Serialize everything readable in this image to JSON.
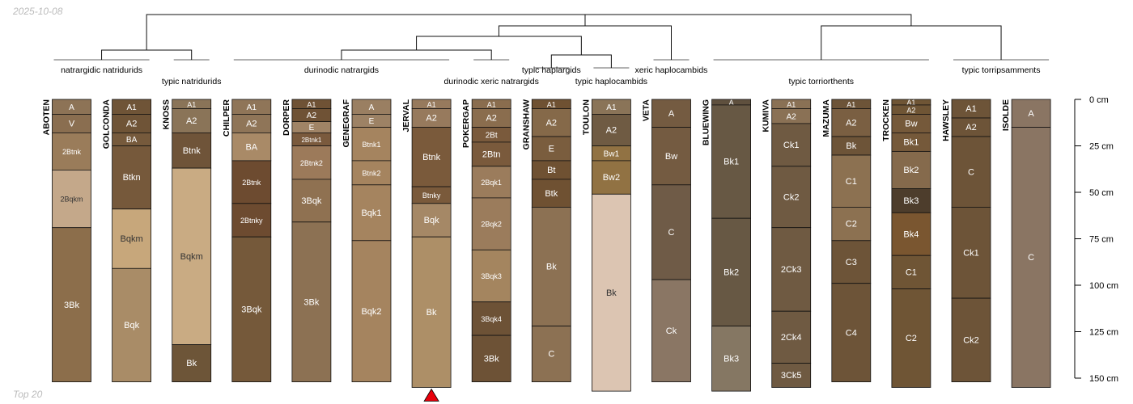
{
  "header": {
    "date": "2025-10-08"
  },
  "footer": {
    "label": "Top 20"
  },
  "depth_axis": {
    "unit": "cm",
    "ticks": [
      0,
      25,
      50,
      75,
      100,
      125,
      150
    ]
  },
  "groups": [
    {
      "label": "natrargidic natridurids",
      "members": [
        "ABOTEN",
        "GOLCONDA"
      ]
    },
    {
      "label": "typic natridurids",
      "members": [
        "KNOSS"
      ]
    },
    {
      "label": "durinodic natrargids",
      "members": [
        "CHILPER",
        "DORPER",
        "GENEGRAF",
        "JERVAL"
      ]
    },
    {
      "label": "durinodic xeric natrargids",
      "members": [
        "POKERGAP"
      ]
    },
    {
      "label": "typic haplargids",
      "members": [
        "GRANSHAW"
      ]
    },
    {
      "label": "typic haplocambids",
      "members": [
        "TOULON"
      ]
    },
    {
      "label": "xeric haplocambids",
      "members": [
        "VETA"
      ]
    },
    {
      "label": "typic torriorthents",
      "members": [
        "BLUEWING",
        "KUMIVA",
        "MAZUMA",
        "TROCKEN"
      ]
    },
    {
      "label": "typic torripsamments",
      "members": [
        "HAWSLEY",
        "ISOLDE"
      ]
    }
  ],
  "marker": {
    "profile": "JERVAL",
    "color": "#e8000b"
  },
  "profiles": [
    {
      "name": "ABOTEN",
      "horizons": [
        {
          "name": "A",
          "top": 0,
          "bottom": 8,
          "color": "#8d7356"
        },
        {
          "name": "V",
          "top": 8,
          "bottom": 18,
          "color": "#8a6e50"
        },
        {
          "name": "2Btnk",
          "top": 18,
          "bottom": 38,
          "color": "#9a7c5a"
        },
        {
          "name": "2Bqkm",
          "top": 38,
          "bottom": 69,
          "color": "#c4a88a"
        },
        {
          "name": "3Bk",
          "top": 69,
          "bottom": 152,
          "color": "#8c6e4b"
        }
      ]
    },
    {
      "name": "GOLCONDA",
      "horizons": [
        {
          "name": "A1",
          "top": 0,
          "bottom": 8,
          "color": "#6f5437"
        },
        {
          "name": "A2",
          "top": 8,
          "bottom": 18,
          "color": "#6f5437"
        },
        {
          "name": "BA",
          "top": 18,
          "bottom": 25,
          "color": "#765a3c"
        },
        {
          "name": "Btkn",
          "top": 25,
          "bottom": 59,
          "color": "#76593b"
        },
        {
          "name": "Bqkm",
          "top": 59,
          "bottom": 91,
          "color": "#c7a77b"
        },
        {
          "name": "Bqk",
          "top": 91,
          "bottom": 152,
          "color": "#a98c67"
        }
      ]
    },
    {
      "name": "KNOSS",
      "horizons": [
        {
          "name": "A1",
          "top": 0,
          "bottom": 5,
          "color": "#8a7458"
        },
        {
          "name": "A2",
          "top": 5,
          "bottom": 18,
          "color": "#8a7458"
        },
        {
          "name": "Btnk",
          "top": 18,
          "bottom": 37,
          "color": "#6f5439"
        },
        {
          "name": "Bqkm",
          "top": 37,
          "bottom": 132,
          "color": "#c9ab83"
        },
        {
          "name": "Bk",
          "top": 132,
          "bottom": 152,
          "color": "#6d5538"
        }
      ]
    },
    {
      "name": "CHILPER",
      "horizons": [
        {
          "name": "A1",
          "top": 0,
          "bottom": 8,
          "color": "#8f7558"
        },
        {
          "name": "A2",
          "top": 8,
          "bottom": 18,
          "color": "#8f7558"
        },
        {
          "name": "BA",
          "top": 18,
          "bottom": 33,
          "color": "#a98a67"
        },
        {
          "name": "2Btnk",
          "top": 33,
          "bottom": 56,
          "color": "#6d4b30"
        },
        {
          "name": "2Btnky",
          "top": 56,
          "bottom": 74,
          "color": "#6d4b30"
        },
        {
          "name": "3Bqk",
          "top": 74,
          "bottom": 152,
          "color": "#75593a"
        }
      ]
    },
    {
      "name": "DORPER",
      "horizons": [
        {
          "name": "A1",
          "top": 0,
          "bottom": 5,
          "color": "#6f5235"
        },
        {
          "name": "A2",
          "top": 5,
          "bottom": 12,
          "color": "#6f5235"
        },
        {
          "name": "E",
          "top": 12,
          "bottom": 18,
          "color": "#a08466"
        },
        {
          "name": "2Btnk1",
          "top": 18,
          "bottom": 25,
          "color": "#7a5a3d"
        },
        {
          "name": "2Btnk2",
          "top": 25,
          "bottom": 43,
          "color": "#9c7a5a"
        },
        {
          "name": "3Bqk",
          "top": 43,
          "bottom": 66,
          "color": "#8f7151"
        },
        {
          "name": "3Bk",
          "top": 66,
          "bottom": 152,
          "color": "#8c7153"
        }
      ]
    },
    {
      "name": "GENEGRAF",
      "horizons": [
        {
          "name": "A",
          "top": 0,
          "bottom": 8,
          "color": "#9a7f62"
        },
        {
          "name": "E",
          "top": 8,
          "bottom": 15,
          "color": "#9d8265"
        },
        {
          "name": "Btnk1",
          "top": 15,
          "bottom": 33,
          "color": "#a5845f"
        },
        {
          "name": "Btnk2",
          "top": 33,
          "bottom": 46,
          "color": "#a5845f"
        },
        {
          "name": "Bqk1",
          "top": 46,
          "bottom": 76,
          "color": "#a5845f"
        },
        {
          "name": "Bqk2",
          "top": 76,
          "bottom": 152,
          "color": "#a5845f"
        }
      ]
    },
    {
      "name": "JERVAL",
      "horizons": [
        {
          "name": "A1",
          "top": 0,
          "bottom": 5,
          "color": "#977a5d"
        },
        {
          "name": "A2",
          "top": 5,
          "bottom": 15,
          "color": "#977a5d"
        },
        {
          "name": "Btnk",
          "top": 15,
          "bottom": 47,
          "color": "#7a5a3b"
        },
        {
          "name": "Btnky",
          "top": 47,
          "bottom": 56,
          "color": "#7a5a3b"
        },
        {
          "name": "Bqk",
          "top": 56,
          "bottom": 74,
          "color": "#a58866"
        },
        {
          "name": "Bk",
          "top": 74,
          "bottom": 155,
          "color": "#ad8f67"
        }
      ]
    },
    {
      "name": "POKERGAP",
      "horizons": [
        {
          "name": "A1",
          "top": 0,
          "bottom": 5,
          "color": "#8a6d4e"
        },
        {
          "name": "A2",
          "top": 5,
          "bottom": 15,
          "color": "#8a6d4e"
        },
        {
          "name": "2Bt",
          "top": 15,
          "bottom": 23,
          "color": "#7a5a3c"
        },
        {
          "name": "2Btn",
          "top": 23,
          "bottom": 36,
          "color": "#7a5a3c"
        },
        {
          "name": "2Bqk1",
          "top": 36,
          "bottom": 53,
          "color": "#9b7c5c"
        },
        {
          "name": "2Bqk2",
          "top": 53,
          "bottom": 81,
          "color": "#9b7c5c"
        },
        {
          "name": "3Bqk3",
          "top": 81,
          "bottom": 109,
          "color": "#a4855f"
        },
        {
          "name": "3Bqk4",
          "top": 109,
          "bottom": 127,
          "color": "#6d5236"
        },
        {
          "name": "3Bk",
          "top": 127,
          "bottom": 152,
          "color": "#6d5236"
        }
      ]
    },
    {
      "name": "GRANSHAW",
      "horizons": [
        {
          "name": "A1",
          "top": 0,
          "bottom": 5,
          "color": "#6f5132"
        },
        {
          "name": "A2",
          "top": 5,
          "bottom": 20,
          "color": "#856949"
        },
        {
          "name": "E",
          "top": 20,
          "bottom": 33,
          "color": "#7a5d3e"
        },
        {
          "name": "Bt",
          "top": 33,
          "bottom": 43,
          "color": "#6f5132"
        },
        {
          "name": "Btk",
          "top": 43,
          "bottom": 58,
          "color": "#6f5132"
        },
        {
          "name": "Bk",
          "top": 58,
          "bottom": 122,
          "color": "#8c7153"
        },
        {
          "name": "C",
          "top": 122,
          "bottom": 152,
          "color": "#8c7153"
        }
      ]
    },
    {
      "name": "TOULON",
      "horizons": [
        {
          "name": "A1",
          "top": 0,
          "bottom": 8,
          "color": "#8a7458"
        },
        {
          "name": "A2",
          "top": 8,
          "bottom": 25,
          "color": "#6f5b43"
        },
        {
          "name": "Bw1",
          "top": 25,
          "bottom": 33,
          "color": "#917243"
        },
        {
          "name": "Bw2",
          "top": 33,
          "bottom": 51,
          "color": "#917243"
        },
        {
          "name": "Bk",
          "top": 51,
          "bottom": 157,
          "color": "#dcc5b2"
        }
      ]
    },
    {
      "name": "VETA",
      "horizons": [
        {
          "name": "A",
          "top": 0,
          "bottom": 15,
          "color": "#745b41"
        },
        {
          "name": "Bw",
          "top": 15,
          "bottom": 46,
          "color": "#745b41"
        },
        {
          "name": "C",
          "top": 46,
          "bottom": 97,
          "color": "#6f5b47"
        },
        {
          "name": "Ck",
          "top": 97,
          "bottom": 152,
          "color": "#8a7664"
        }
      ]
    },
    {
      "name": "BLUEWING",
      "horizons": [
        {
          "name": "A",
          "top": 0,
          "bottom": 3,
          "color": "#5f503e"
        },
        {
          "name": "Bk1",
          "top": 3,
          "bottom": 64,
          "color": "#675844"
        },
        {
          "name": "Bk2",
          "top": 64,
          "bottom": 122,
          "color": "#675844"
        },
        {
          "name": "Bk3",
          "top": 122,
          "bottom": 157,
          "color": "#857763"
        }
      ]
    },
    {
      "name": "KUMIVA",
      "horizons": [
        {
          "name": "A1",
          "top": 0,
          "bottom": 5,
          "color": "#8a7155"
        },
        {
          "name": "A2",
          "top": 5,
          "bottom": 13,
          "color": "#8a7155"
        },
        {
          "name": "Ck1",
          "top": 13,
          "bottom": 36,
          "color": "#6f5a42"
        },
        {
          "name": "Ck2",
          "top": 36,
          "bottom": 69,
          "color": "#6f5a42"
        },
        {
          "name": "2Ck3",
          "top": 69,
          "bottom": 114,
          "color": "#6f5a42"
        },
        {
          "name": "2Ck4",
          "top": 114,
          "bottom": 142,
          "color": "#6f5a42"
        },
        {
          "name": "3Ck5",
          "top": 142,
          "bottom": 155,
          "color": "#6f5a42"
        }
      ]
    },
    {
      "name": "MAZUMA",
      "horizons": [
        {
          "name": "A1",
          "top": 0,
          "bottom": 5,
          "color": "#6d5438"
        },
        {
          "name": "A2",
          "top": 5,
          "bottom": 20,
          "color": "#7a5f42"
        },
        {
          "name": "Bk",
          "top": 20,
          "bottom": 30,
          "color": "#6d5438"
        },
        {
          "name": "C1",
          "top": 30,
          "bottom": 58,
          "color": "#8c7151"
        },
        {
          "name": "C2",
          "top": 58,
          "bottom": 76,
          "color": "#8c7151"
        },
        {
          "name": "C3",
          "top": 76,
          "bottom": 99,
          "color": "#6d5438"
        },
        {
          "name": "C4",
          "top": 99,
          "bottom": 152,
          "color": "#6d5438"
        }
      ]
    },
    {
      "name": "TROCKEN",
      "horizons": [
        {
          "name": "A1",
          "top": 0,
          "bottom": 3,
          "color": "#6f5535"
        },
        {
          "name": "A2",
          "top": 3,
          "bottom": 8,
          "color": "#6f5535"
        },
        {
          "name": "Bw",
          "top": 8,
          "bottom": 18,
          "color": "#75593a"
        },
        {
          "name": "Bk1",
          "top": 18,
          "bottom": 28,
          "color": "#75593a"
        },
        {
          "name": "Bk2",
          "top": 28,
          "bottom": 48,
          "color": "#856a4c"
        },
        {
          "name": "Bk3",
          "top": 48,
          "bottom": 61,
          "color": "#4d3d2c"
        },
        {
          "name": "Bk4",
          "top": 61,
          "bottom": 84,
          "color": "#7a5630"
        },
        {
          "name": "C1",
          "top": 84,
          "bottom": 102,
          "color": "#6f5535"
        },
        {
          "name": "C2",
          "top": 102,
          "bottom": 155,
          "color": "#6f5535"
        }
      ]
    },
    {
      "name": "HAWSLEY",
      "horizons": [
        {
          "name": "A1",
          "top": 0,
          "bottom": 10,
          "color": "#6d5438"
        },
        {
          "name": "A2",
          "top": 10,
          "bottom": 20,
          "color": "#6d5438"
        },
        {
          "name": "C",
          "top": 20,
          "bottom": 58,
          "color": "#6d5438"
        },
        {
          "name": "Ck1",
          "top": 58,
          "bottom": 107,
          "color": "#6d5438"
        },
        {
          "name": "Ck2",
          "top": 107,
          "bottom": 152,
          "color": "#6d5438"
        }
      ]
    },
    {
      "name": "ISOLDE",
      "horizons": [
        {
          "name": "A",
          "top": 0,
          "bottom": 15,
          "color": "#8a7563"
        },
        {
          "name": "C",
          "top": 15,
          "bottom": 155,
          "color": "#8a7563"
        }
      ]
    }
  ]
}
